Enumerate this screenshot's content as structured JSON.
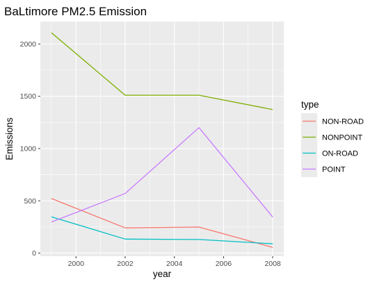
{
  "chart_data": {
    "type": "line",
    "title": "BaLtimore PM2.5 Emission",
    "xlabel": "year",
    "ylabel": "Emissions",
    "x": [
      1999,
      2002,
      2005,
      2008
    ],
    "xlim": [
      1998.55,
      2008.45
    ],
    "ylim": [
      -30,
      2215
    ],
    "xticks": [
      2000,
      2002,
      2004,
      2006,
      2008
    ],
    "yticks": [
      0,
      500,
      1000,
      1500,
      2000
    ],
    "grid": true,
    "legend": {
      "title": "type",
      "position": "right"
    },
    "series": [
      {
        "name": "NON-ROAD",
        "color": "#f8766d",
        "values": [
          522,
          241,
          249,
          55
        ]
      },
      {
        "name": "NONPOINT",
        "color": "#7cae00",
        "values": [
          2108,
          1510,
          1510,
          1373
        ]
      },
      {
        "name": "ON-ROAD",
        "color": "#00bfc4",
        "values": [
          347,
          134,
          130,
          89
        ]
      },
      {
        "name": "POINT",
        "color": "#c77cff",
        "values": [
          297,
          570,
          1200,
          345
        ]
      }
    ]
  }
}
